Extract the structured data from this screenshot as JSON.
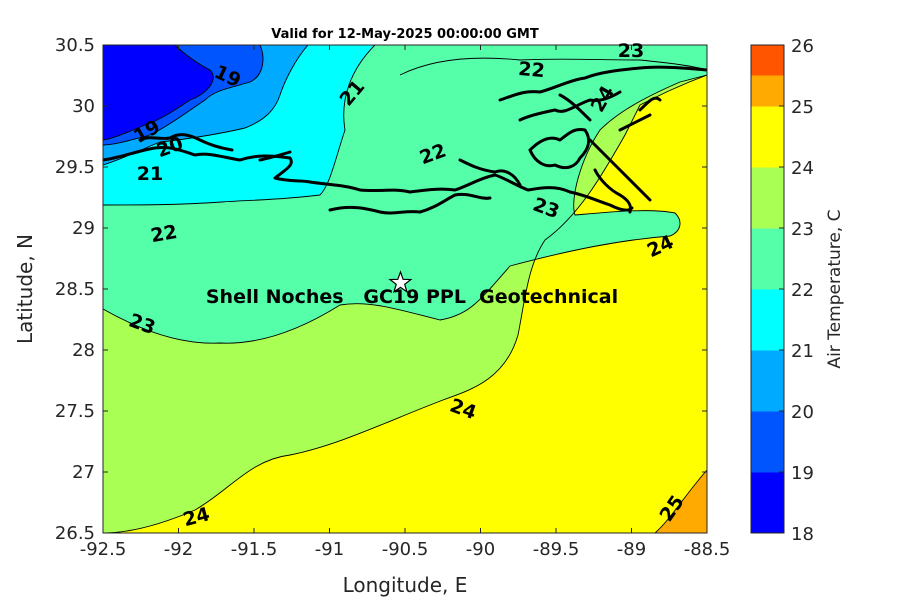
{
  "colors": {
    "c18_19": "#0000ff",
    "c19_20": "#0055ff",
    "c20_21": "#00aaff",
    "c21_22": "#00ffff",
    "c22_23": "#55ffaa",
    "c23_24": "#aaff55",
    "c24_25": "#ffff00",
    "c25_26": "#ffaa00",
    "c26_top": "#ff5500"
  },
  "chart_data": {
    "type": "contour-map",
    "title": "Valid for 12-May-2025 00:00:00 GMT",
    "xlabel": "Longitude, E",
    "ylabel": "Latitude, N",
    "xlim": [
      -92.5,
      -88.5
    ],
    "ylim": [
      26.5,
      30.5
    ],
    "xticks": [
      "-92.5",
      "-92",
      "-91.5",
      "-91",
      "-90.5",
      "-90",
      "-89.5",
      "-89",
      "-88.5"
    ],
    "yticks": [
      "30.5",
      "30",
      "29.5",
      "29",
      "28.5",
      "28",
      "27.5",
      "27",
      "26.5"
    ],
    "colorbar": {
      "label": "Air Temperature, C",
      "ticks": [
        "26",
        "25",
        "24",
        "23",
        "22",
        "21",
        "20",
        "19",
        "18"
      ],
      "range": [
        18,
        26
      ]
    },
    "contour_labels": [
      "19",
      "19",
      "20",
      "21",
      "21",
      "22",
      "22",
      "22",
      "23",
      "23",
      "23",
      "24",
      "24",
      "24",
      "24",
      "25"
    ],
    "site": {
      "name": "Shell Noches   GC19 PPL  Geotechnical",
      "lon": -90.53,
      "lat": 28.55
    }
  }
}
